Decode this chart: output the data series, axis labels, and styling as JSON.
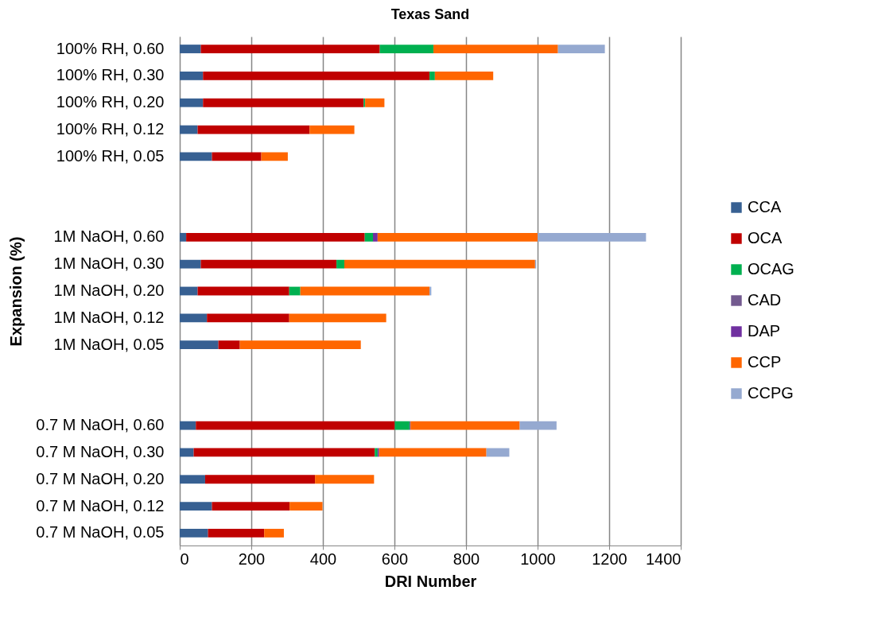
{
  "chart_data": {
    "type": "bar",
    "orientation": "horizontal",
    "stacked": true,
    "title": "Texas Sand",
    "xlabel": "DRI Number",
    "ylabel": "Expansion (%)",
    "categories": [
      "100% RH,  0.60",
      "100% RH,  0.30",
      "100% RH,  0.20",
      "100% RH,  0.12",
      "100% RH,  0.05",
      null,
      null,
      "1M NaOH, 0.60",
      "1M NaOH, 0.30",
      "1M NaOH, 0.20",
      "1M NaOH, 0.12",
      "1M NaOH, 0.05",
      null,
      null,
      "0.7 M NaOH, 0.60",
      "0.7 M NaOH, 0.30",
      "0.7 M NaOH, 0.20",
      "0.7 M NaOH, 0.12",
      "0.7 M NaOH, 0.05"
    ],
    "series": [
      {
        "name": "CCA",
        "color": "#376092",
        "values": [
          59,
          65,
          65,
          50,
          90,
          null,
          null,
          18,
          59,
          50,
          76,
          108,
          null,
          null,
          45,
          39,
          71,
          90,
          79
        ]
      },
      {
        "name": "OCA",
        "color": "#c00000",
        "values": [
          500,
          633,
          449,
          313,
          138,
          null,
          null,
          499,
          379,
          256,
          230,
          60,
          null,
          null,
          556,
          506,
          307,
          217,
          157
        ]
      },
      {
        "name": "OCAG",
        "color": "#00b050",
        "values": [
          150,
          15,
          4,
          0,
          0,
          null,
          null,
          23,
          22,
          31,
          0,
          0,
          null,
          null,
          41,
          8,
          0,
          0,
          0
        ]
      },
      {
        "name": "CAD",
        "color": "#735a8f",
        "values": [
          0,
          0,
          0,
          0,
          0,
          null,
          null,
          0,
          0,
          0,
          0,
          0,
          null,
          null,
          3,
          0,
          0,
          0,
          0
        ]
      },
      {
        "name": "DAP",
        "color": "#7030a0",
        "values": [
          0,
          0,
          0,
          0,
          0,
          null,
          null,
          13,
          0,
          0,
          0,
          0,
          null,
          null,
          0,
          4,
          0,
          0,
          0
        ]
      },
      {
        "name": "CCP",
        "color": "#ff6600",
        "values": [
          348,
          163,
          54,
          125,
          74,
          null,
          null,
          447,
          533,
          361,
          271,
          338,
          null,
          null,
          305,
          300,
          165,
          92,
          55
        ]
      },
      {
        "name": "CCPG",
        "color": "#95a9d0",
        "values": [
          131,
          0,
          0,
          0,
          0,
          null,
          null,
          303,
          3,
          5,
          0,
          0,
          null,
          null,
          103,
          64,
          0,
          0,
          0
        ]
      }
    ],
    "xlim": [
      0,
      1400
    ],
    "xticks": [
      0,
      200,
      400,
      600,
      800,
      1000,
      1200,
      1400
    ],
    "grid": "x",
    "legend": "right"
  }
}
